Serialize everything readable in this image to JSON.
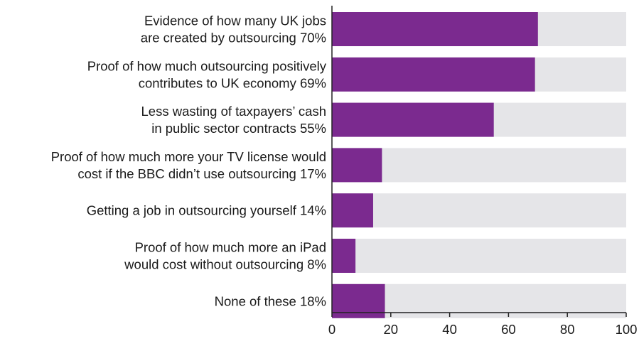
{
  "chart_data": {
    "type": "bar",
    "orientation": "horizontal",
    "title": "",
    "xlabel": "",
    "ylabel": "",
    "xlim": [
      0,
      100
    ],
    "grid": false,
    "legend": "none",
    "categories": [
      [
        "Evidence of how many UK jobs",
        "are created by outsourcing 70%"
      ],
      [
        "Proof of how much outsourcing positively",
        "contributes to UK economy 69%"
      ],
      [
        "Less wasting of taxpayers’ cash",
        "in public sector contracts 55%"
      ],
      [
        "Proof of how much more your TV license would",
        "cost if the BBC didn’t use outsourcing 17%"
      ],
      [
        "Getting a job in outsourcing yourself 14%"
      ],
      [
        "Proof of how much more an iPad",
        "would cost without outsourcing 8%"
      ],
      [
        "None of these 18%"
      ]
    ],
    "values": [
      70,
      69,
      55,
      17,
      14,
      8,
      18
    ],
    "max_value": 100,
    "x_ticks": [
      0,
      20,
      40,
      60,
      80,
      100
    ],
    "colors": {
      "bar": "#7b2a8f",
      "track": "#e5e5e8",
      "axis": "#222222",
      "text": "#1a1a1a"
    }
  }
}
